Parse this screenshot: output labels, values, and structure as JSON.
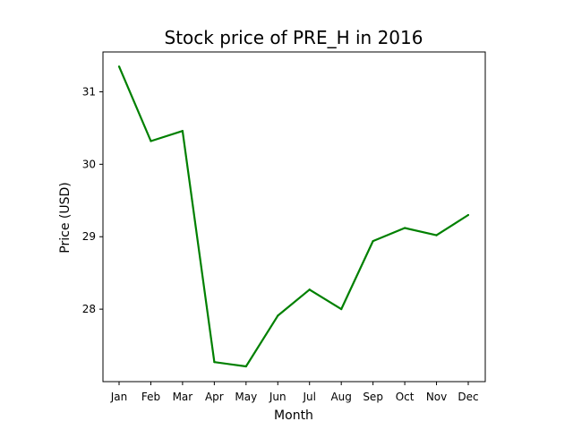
{
  "chart_data": {
    "type": "line",
    "title": "Stock price of PRE_H in 2016",
    "xlabel": "Month",
    "ylabel": "Price (USD)",
    "categories": [
      "Jan",
      "Feb",
      "Mar",
      "Apr",
      "May",
      "Jun",
      "Jul",
      "Aug",
      "Sep",
      "Oct",
      "Nov",
      "Dec"
    ],
    "series": [
      {
        "values": [
          31.35,
          30.32,
          30.46,
          27.27,
          27.21,
          27.91,
          28.27,
          28.0,
          28.94,
          29.12,
          29.02,
          29.3
        ],
        "color": "#008000"
      }
    ],
    "yticks": [
      28,
      29,
      30,
      31
    ],
    "ylim": [
      27.0,
      31.55
    ],
    "grid": false,
    "legend": "none"
  }
}
